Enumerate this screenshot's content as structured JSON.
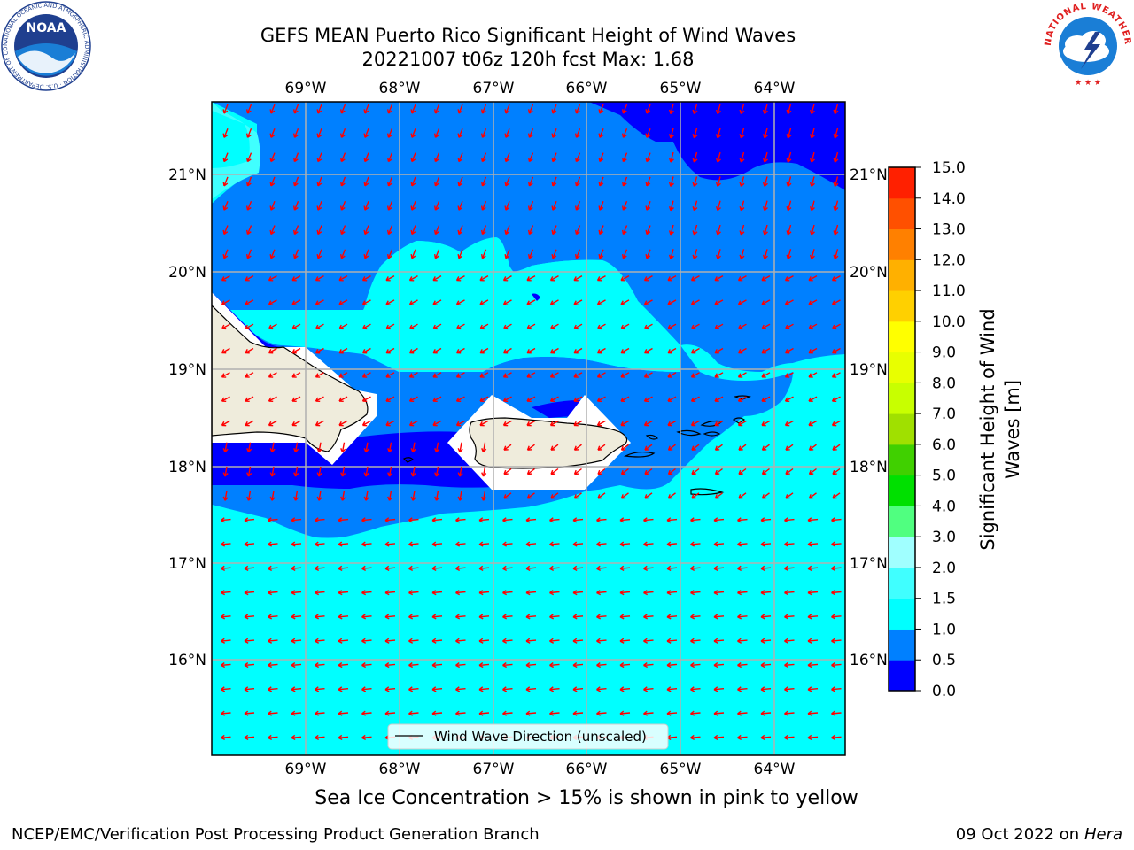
{
  "header": {
    "title_line1": "GEFS MEAN Puerto Rico Significant Height of Wind Waves",
    "title_line2": "20221007 t06z 120h fcst   Max: 1.68"
  },
  "logos": {
    "noaa_text": "NOAA",
    "noaa_ring_text": "NATIONAL OCEANIC AND ATMOSPHERIC ADMINISTRATION · U.S. DEPARTMENT OF COMMERCE",
    "nws_ring_text": "NATIONAL WEATHER SERVICE"
  },
  "map": {
    "lon_labels": [
      "69°W",
      "68°W",
      "67°W",
      "66°W",
      "65°W",
      "64°W"
    ],
    "lat_labels": [
      "21°N",
      "20°N",
      "19°N",
      "18°N",
      "17°N",
      "16°N"
    ],
    "legend_label": "Wind Wave Direction (unscaled)",
    "arrow_color": "#ff0000"
  },
  "colorbar": {
    "label_line1": "Significant Height of Wind",
    "label_line2": "Waves [m]",
    "ticks": [
      "0.0",
      "0.5",
      "1.0",
      "1.5",
      "2.0",
      "3.0",
      "4.0",
      "5.0",
      "6.0",
      "7.0",
      "8.0",
      "9.0",
      "10.0",
      "11.0",
      "12.0",
      "13.0",
      "14.0",
      "15.0"
    ],
    "colors": [
      "#0000ff",
      "#0080ff",
      "#00ffff",
      "#40ffff",
      "#a0ffff",
      "#50ff80",
      "#00e000",
      "#40d000",
      "#a0e000",
      "#c8ff00",
      "#e8ff00",
      "#ffff00",
      "#ffd000",
      "#ffb000",
      "#ff8000",
      "#ff5000",
      "#ff2000"
    ]
  },
  "caption": "Sea Ice Concentration > 15% is shown in pink to yellow",
  "footer": {
    "left": "NCEP/EMC/Verification Post Processing Product Generation Branch",
    "right_prefix": "09 Oct 2022 on ",
    "right_machine": "Hera"
  }
}
